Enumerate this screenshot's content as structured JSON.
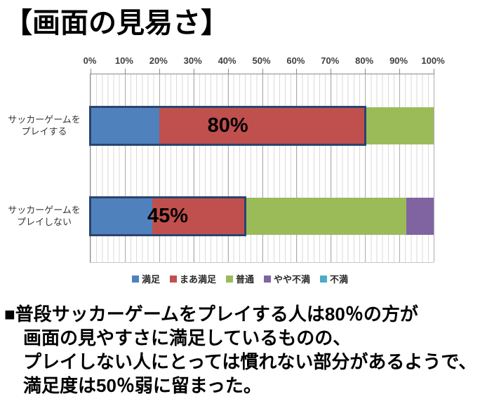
{
  "page": {
    "title": "【画面の見易さ】"
  },
  "chart_data": {
    "type": "bar",
    "subtype": "horizontal-stacked-100pct",
    "title": "画面の見易さ",
    "categories": [
      {
        "lines": [
          "サッカーゲームを",
          "プレイする"
        ]
      },
      {
        "lines": [
          "サッカーゲームを",
          "プレイしない"
        ]
      }
    ],
    "series": [
      {
        "name": "満足",
        "color": "#4F81BD",
        "values": [
          20,
          18
        ]
      },
      {
        "name": "まあ満足",
        "color": "#C0504D",
        "values": [
          60,
          27
        ]
      },
      {
        "name": "普通",
        "color": "#9BBB59",
        "values": [
          20,
          47
        ]
      },
      {
        "name": "やや不満",
        "color": "#8064A2",
        "values": [
          0,
          8
        ]
      },
      {
        "name": "不満",
        "color": "#4BACC6",
        "values": [
          0,
          0
        ]
      }
    ],
    "bar_callouts": [
      {
        "label": "80%",
        "to_pct": 80
      },
      {
        "label": "45%",
        "to_pct": 45
      }
    ],
    "x_ticks": [
      "0%",
      "10%",
      "20%",
      "30%",
      "40%",
      "50%",
      "60%",
      "70%",
      "80%",
      "90%",
      "100%"
    ],
    "xlim": [
      0,
      100
    ],
    "grid": {
      "minor": true,
      "major": true
    },
    "legend_position": "bottom",
    "callout_border_color": "#2A4470"
  },
  "note": {
    "lines": [
      "■普段サッカーゲームをプレイする人は80％の方が",
      "画面の見やすさに満足しているものの、",
      "プレイしない人にとっては慣れない部分があるようで、",
      "満足度は50％弱に留まった。"
    ]
  }
}
